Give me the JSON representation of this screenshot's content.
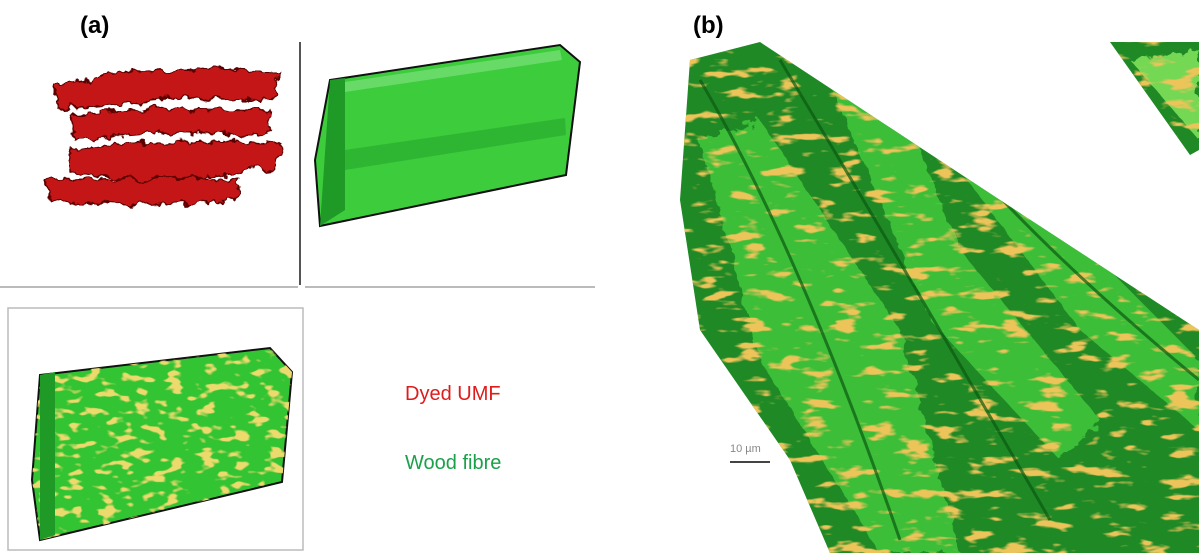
{
  "panel_a": {
    "label": "(a)",
    "legend": [
      "Dyed UMF",
      "Wood fibre"
    ]
  },
  "panel_b": {
    "label": "(b)",
    "scale_bar": "10 µm"
  }
}
